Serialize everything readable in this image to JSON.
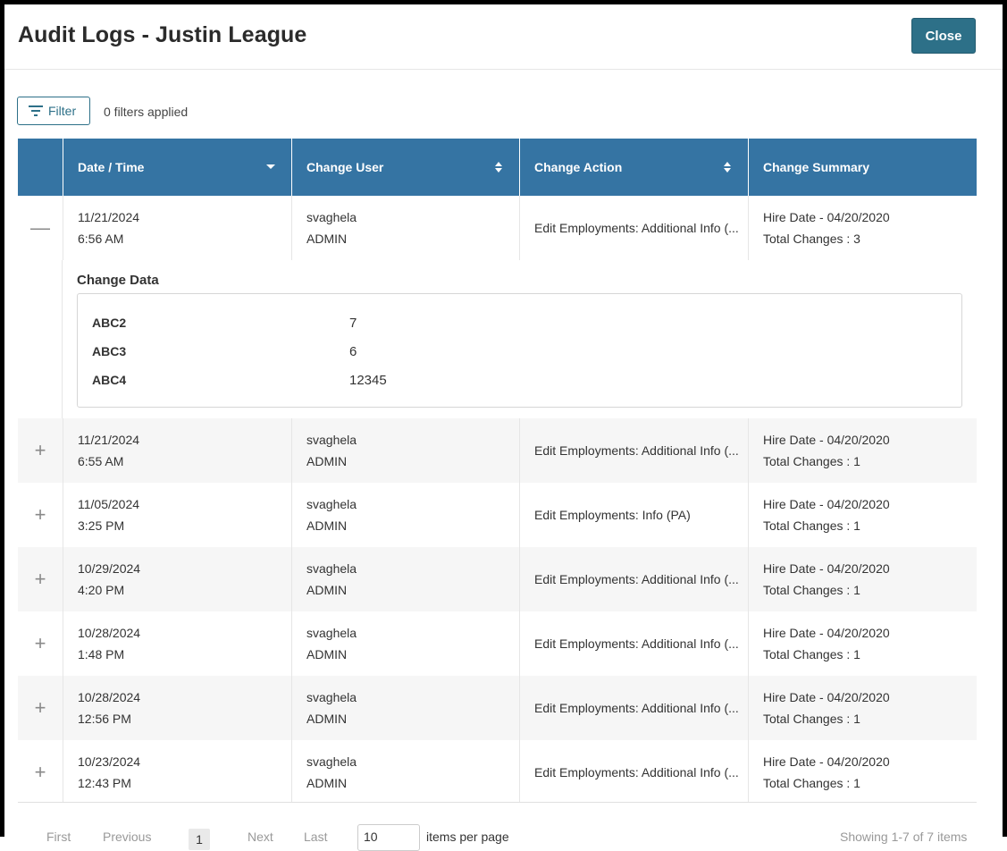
{
  "header": {
    "title": "Audit Logs - Justin League",
    "close_label": "Close"
  },
  "toolbar": {
    "filter_label": "Filter",
    "filters_applied": "0 filters applied"
  },
  "table": {
    "columns": [
      "Date / Time",
      "Change User",
      "Change Action",
      "Change Summary"
    ],
    "expanded": {
      "date": "11/21/2024",
      "time": "6:56 AM",
      "user": "svaghela",
      "role": "ADMIN",
      "action": "Edit Employments: Additional Info (...",
      "summary_line1": "Hire Date - 04/20/2020",
      "summary_line2": "Total Changes : 3",
      "change_data_title": "Change Data",
      "change_data": [
        {
          "key": "ABC2",
          "value": "7"
        },
        {
          "key": "ABC3",
          "value": "6"
        },
        {
          "key": "ABC4",
          "value": "12345"
        }
      ]
    },
    "rows": [
      {
        "date": "11/21/2024",
        "time": "6:55 AM",
        "user": "svaghela",
        "role": "ADMIN",
        "action": "Edit Employments: Additional Info (...",
        "summary_line1": "Hire Date - 04/20/2020",
        "summary_line2": "Total Changes : 1"
      },
      {
        "date": "11/05/2024",
        "time": "3:25 PM",
        "user": "svaghela",
        "role": "ADMIN",
        "action": "Edit Employments: Info (PA)",
        "summary_line1": "Hire Date - 04/20/2020",
        "summary_line2": "Total Changes : 1"
      },
      {
        "date": "10/29/2024",
        "time": "4:20 PM",
        "user": "svaghela",
        "role": "ADMIN",
        "action": "Edit Employments: Additional Info (...",
        "summary_line1": "Hire Date - 04/20/2020",
        "summary_line2": "Total Changes : 1"
      },
      {
        "date": "10/28/2024",
        "time": "1:48 PM",
        "user": "svaghela",
        "role": "ADMIN",
        "action": "Edit Employments: Additional Info (...",
        "summary_line1": "Hire Date - 04/20/2020",
        "summary_line2": "Total Changes : 1"
      },
      {
        "date": "10/28/2024",
        "time": "12:56 PM",
        "user": "svaghela",
        "role": "ADMIN",
        "action": "Edit Employments: Additional Info (...",
        "summary_line1": "Hire Date - 04/20/2020",
        "summary_line2": "Total Changes : 1"
      },
      {
        "date": "10/23/2024",
        "time": "12:43 PM",
        "user": "svaghela",
        "role": "ADMIN",
        "action": "Edit Employments: Additional Info (...",
        "summary_line1": "Hire Date - 04/20/2020",
        "summary_line2": "Total Changes : 1"
      }
    ]
  },
  "footer": {
    "first": "First",
    "previous": "Previous",
    "page": "1",
    "next": "Next",
    "last": "Last",
    "per_page": "10",
    "items_per_page": "items per page",
    "showing": "Showing 1-7 of 7 items"
  },
  "icons": {
    "filter": "filter-lines-icon",
    "sort_desc": "caret-down-icon",
    "sort": "sort-arrows-icon",
    "collapse": "minus-icon",
    "expand": "plus-icon"
  }
}
